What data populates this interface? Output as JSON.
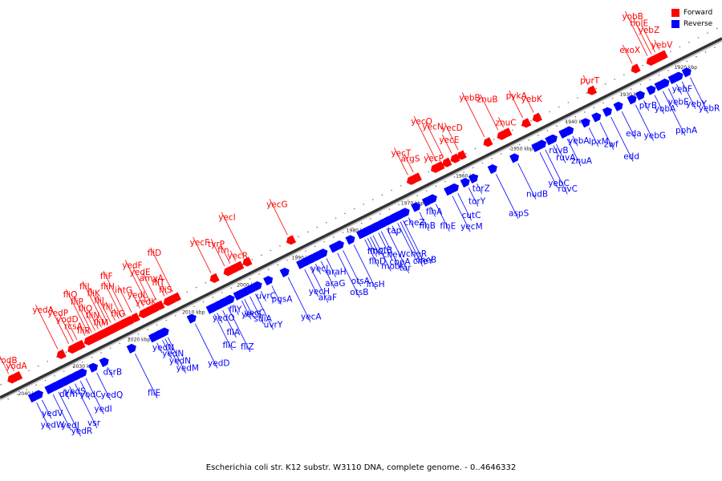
{
  "caption": "Escherichia coli str. K12 substr. W3110 DNA, complete genome. - 0..4646332",
  "legend": {
    "items": [
      {
        "label": "Forward",
        "color": "#ff0000"
      },
      {
        "label": "Reverse",
        "color": "#0000ff"
      }
    ]
  },
  "colors": {
    "forward": "#ff0000",
    "reverse": "#0000ff",
    "backbone": "#333333"
  },
  "axis": {
    "start_kbp": 1920,
    "end_kbp": 2040,
    "tick_step_kbp": 10,
    "unit": "kbp",
    "ticks": [
      "1920 kbp",
      "1930 kbp",
      "1940 kbp",
      "1950 kbp",
      "1960 kbp",
      "1970 kbp",
      "1980 kbp",
      "1990 kbp",
      "2000 kbp",
      "2010 kbp",
      "2020 kbp",
      "2030 kbp",
      "2040 kbp"
    ]
  },
  "reverse_genes": [
    {
      "name": "yebF",
      "kbp": 1922
    },
    {
      "name": "yebE",
      "kbp": 1923.5
    },
    {
      "name": "yebY",
      "kbp": 1921
    },
    {
      "name": "yebR",
      "kbp": 1919.5
    },
    {
      "name": "pphA",
      "kbp": 1924.5
    },
    {
      "name": "ptrB",
      "kbp": 1928
    },
    {
      "name": "yobA",
      "kbp": 1926
    },
    {
      "name": "eda",
      "kbp": 1932
    },
    {
      "name": "yebG",
      "kbp": 1929.5
    },
    {
      "name": "edd",
      "kbp": 1934
    },
    {
      "name": "yebA",
      "kbp": 1941
    },
    {
      "name": "lpxM",
      "kbp": 1938
    },
    {
      "name": "zwf",
      "kbp": 1936
    },
    {
      "name": "yebC",
      "kbp": 1947
    },
    {
      "name": "ruvC",
      "kbp": 1946
    },
    {
      "name": "ruvB",
      "kbp": 1944.5
    },
    {
      "name": "ruvA",
      "kbp": 1944
    },
    {
      "name": "znuA",
      "kbp": 1942
    },
    {
      "name": "nudB",
      "kbp": 1951
    },
    {
      "name": "aspS",
      "kbp": 1955
    },
    {
      "name": "torZ",
      "kbp": 1958.5
    },
    {
      "name": "torY",
      "kbp": 1960
    },
    {
      "name": "cutC",
      "kbp": 1962
    },
    {
      "name": "yecM",
      "kbp": 1963
    },
    {
      "name": "cheB",
      "kbp": 1972
    },
    {
      "name": "cheZ",
      "kbp": 1971
    },
    {
      "name": "flhB",
      "kbp": 1969
    },
    {
      "name": "flhE",
      "kbp": 1966
    },
    {
      "name": "cheR",
      "kbp": 1973
    },
    {
      "name": "cheY",
      "kbp": 1972.5
    },
    {
      "name": "flhA",
      "kbp": 1967
    },
    {
      "name": "motB",
      "kbp": 1978
    },
    {
      "name": "flhD",
      "kbp": 1979
    },
    {
      "name": "cheA",
      "kbp": 1976
    },
    {
      "name": "tar",
      "kbp": 1975
    },
    {
      "name": "tap",
      "kbp": 1974
    },
    {
      "name": "flhC",
      "kbp": 1978.5
    },
    {
      "name": "cheW",
      "kbp": 1976.5
    },
    {
      "name": "motA",
      "kbp": 1977.5
    },
    {
      "name": "insH",
      "kbp": 1981
    },
    {
      "name": "yecJ",
      "kbp": 1988
    },
    {
      "name": "araH",
      "kbp": 1986
    },
    {
      "name": "araG",
      "kbp": 1987
    },
    {
      "name": "otsA",
      "kbp": 1983
    },
    {
      "name": "otsB",
      "kbp": 1984
    },
    {
      "name": "uvrC",
      "kbp": 1998
    },
    {
      "name": "pgsA",
      "kbp": 1996
    },
    {
      "name": "yecH",
      "kbp": 1990
    },
    {
      "name": "araF",
      "kbp": 1989
    },
    {
      "name": "yecA",
      "kbp": 1993
    },
    {
      "name": "yedO",
      "kbp": 2006
    },
    {
      "name": "yecC",
      "kbp": 2001
    },
    {
      "name": "sdiA",
      "kbp": 2000
    },
    {
      "name": "uvrY",
      "kbp": 1999
    },
    {
      "name": "fliZ",
      "kbp": 2004
    },
    {
      "name": "fliY",
      "kbp": 2003
    },
    {
      "name": "yecS",
      "kbp": 2001.5
    },
    {
      "name": "fliA",
      "kbp": 2005
    },
    {
      "name": "fliC",
      "kbp": 2006.5
    },
    {
      "name": "yedD",
      "kbp": 2010
    },
    {
      "name": "yedN",
      "kbp": 2017
    },
    {
      "name": "yedN",
      "kbp": 2016
    },
    {
      "name": "yedN",
      "kbp": 2015.5
    },
    {
      "name": "yedM",
      "kbp": 2015
    },
    {
      "name": "fliE",
      "kbp": 2021
    },
    {
      "name": "dsrB",
      "kbp": 2026
    },
    {
      "name": "yodC",
      "kbp": 2031
    },
    {
      "name": "yedQ",
      "kbp": 2028
    },
    {
      "name": "yedI",
      "kbp": 2030
    },
    {
      "name": "vsr",
      "kbp": 2032
    },
    {
      "name": "dcm",
      "kbp": 2034
    },
    {
      "name": "yedV",
      "kbp": 2038
    },
    {
      "name": "yedW",
      "kbp": 2039
    },
    {
      "name": "yedJ",
      "kbp": 2036
    },
    {
      "name": "yedR",
      "kbp": 2035
    },
    {
      "name": "yedS",
      "kbp": 2033
    }
  ],
  "forward_genes": [
    {
      "name": "yebV",
      "kbp": 1922
    },
    {
      "name": "exoX",
      "kbp": 1927
    },
    {
      "name": "yebZ",
      "kbp": 1922.8
    },
    {
      "name": "holE",
      "kbp": 1923.5
    },
    {
      "name": "yobB",
      "kbp": 1924.2
    },
    {
      "name": "purT",
      "kbp": 1935
    },
    {
      "name": "yebK",
      "kbp": 1945
    },
    {
      "name": "pykA",
      "kbp": 1947
    },
    {
      "name": "znuB",
      "kbp": 1951.5
    },
    {
      "name": "yebB",
      "kbp": 1954
    },
    {
      "name": "znuC",
      "kbp": 1950.5
    },
    {
      "name": "yecE",
      "kbp": 1960
    },
    {
      "name": "yecD",
      "kbp": 1958.8
    },
    {
      "name": "yecN",
      "kbp": 1961.5
    },
    {
      "name": "yecO",
      "kbp": 1962.8
    },
    {
      "name": "yecP",
      "kbp": 1963.6
    },
    {
      "name": "argS",
      "kbp": 1967
    },
    {
      "name": "yecT",
      "kbp": 1968
    },
    {
      "name": "yecG",
      "kbp": 1990
    },
    {
      "name": "yecI",
      "kbp": 1998
    },
    {
      "name": "yecR",
      "kbp": 1999.5
    },
    {
      "name": "ftn",
      "kbp": 2000.5
    },
    {
      "name": "tyrP",
      "kbp": 2001.5
    },
    {
      "name": "yecF",
      "kbp": 2004
    },
    {
      "name": "fliD",
      "kbp": 2011
    },
    {
      "name": "fliS",
      "kbp": 2012
    },
    {
      "name": "fliT",
      "kbp": 2012.5
    },
    {
      "name": "amyA",
      "kbp": 2014
    },
    {
      "name": "yedE",
      "kbp": 2015
    },
    {
      "name": "yedF",
      "kbp": 2015.6
    },
    {
      "name": "yedK",
      "kbp": 2016.3
    },
    {
      "name": "yedL",
      "kbp": 2017
    },
    {
      "name": "intG",
      "kbp": 2018.5
    },
    {
      "name": "fliH",
      "kbp": 2020.3
    },
    {
      "name": "fliF",
      "kbp": 2019.6
    },
    {
      "name": "fliG",
      "kbp": 2020.8
    },
    {
      "name": "fliI",
      "kbp": 2021.5
    },
    {
      "name": "fliJ",
      "kbp": 2022.3
    },
    {
      "name": "fliK",
      "kbp": 2022.8
    },
    {
      "name": "fliL",
      "kbp": 2023.4
    },
    {
      "name": "fliM",
      "kbp": 2024
    },
    {
      "name": "fliN",
      "kbp": 2024.6
    },
    {
      "name": "fliO",
      "kbp": 2025.2
    },
    {
      "name": "fliP",
      "kbp": 2025.8
    },
    {
      "name": "fliQ",
      "kbp": 2026.4
    },
    {
      "name": "fliR",
      "kbp": 2027
    },
    {
      "name": "rcsA",
      "kbp": 2028.5
    },
    {
      "name": "yodD",
      "kbp": 2029.2
    },
    {
      "name": "yedP",
      "kbp": 2030
    },
    {
      "name": "yedA",
      "kbp": 2032
    },
    {
      "name": "yodA",
      "kbp": 2040
    },
    {
      "name": "yodB",
      "kbp": 2041
    }
  ]
}
